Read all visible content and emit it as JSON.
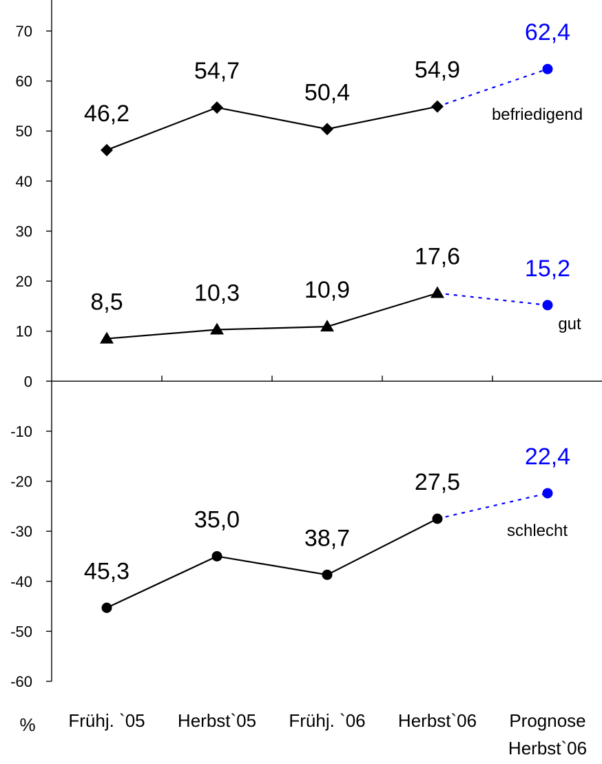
{
  "chart_data": {
    "type": "line",
    "unit_label": "%",
    "categories": [
      "Frühj. `05",
      "Herbst`05",
      "Frühj. `06",
      "Herbst`06",
      "Prognose Herbst`06"
    ],
    "category_lines": [
      [
        "Frühj. `05"
      ],
      [
        "Herbst`05"
      ],
      [
        "Frühj. `06"
      ],
      [
        "Herbst`06"
      ],
      [
        "Prognose",
        "Herbst`06"
      ]
    ],
    "ylim": [
      -60,
      70
    ],
    "yticks": [
      70,
      60,
      50,
      40,
      30,
      20,
      10,
      0,
      -10,
      -20,
      -30,
      -40,
      -50,
      -60
    ],
    "grid": false,
    "series": [
      {
        "name": "befriedigend",
        "marker": "diamond",
        "values": [
          46.2,
          54.7,
          50.4,
          54.9,
          62.4
        ],
        "labels": [
          "46,2",
          "54,7",
          "50,4",
          "54,9",
          "62,4"
        ]
      },
      {
        "name": "gut",
        "marker": "triangle",
        "values": [
          8.5,
          10.3,
          10.9,
          17.6,
          15.2
        ],
        "labels": [
          "8,5",
          "10,3",
          "10,9",
          "17,6",
          "15,2"
        ]
      },
      {
        "name": "schlecht",
        "marker": "circle",
        "values": [
          -45.3,
          -35.0,
          -38.7,
          -27.5,
          -22.4
        ],
        "labels": [
          "45,3",
          "35,0",
          "38,7",
          "27,5",
          "22,4"
        ]
      }
    ],
    "forecast_index": 4,
    "colors": {
      "actual": "#000000",
      "forecast": "#0000ff"
    }
  }
}
